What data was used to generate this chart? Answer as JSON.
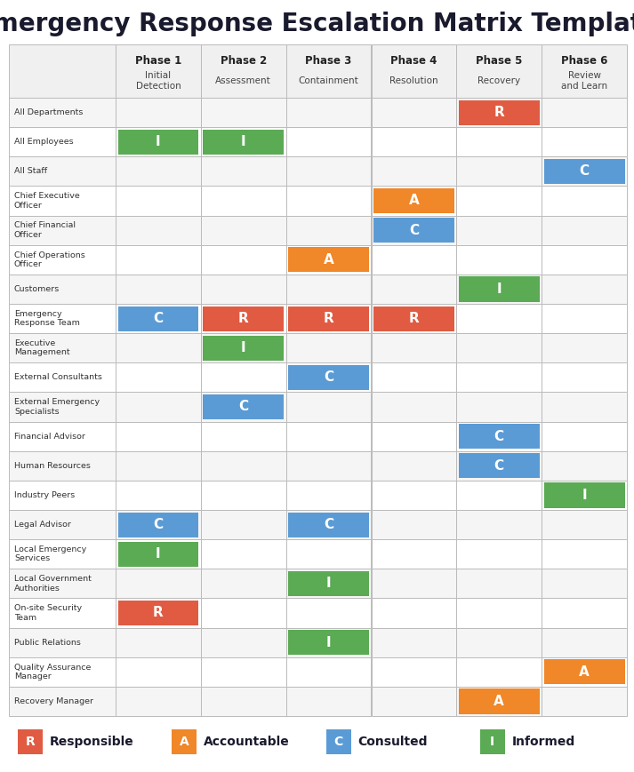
{
  "title": "Emergency Response Escalation Matrix Template",
  "phases": [
    {
      "label": "Phase 1",
      "sublabel": "Initial\nDetection"
    },
    {
      "label": "Phase 2",
      "sublabel": "Assessment"
    },
    {
      "label": "Phase 3",
      "sublabel": "Containment"
    },
    {
      "label": "Phase 4",
      "sublabel": "Resolution"
    },
    {
      "label": "Phase 5",
      "sublabel": "Recovery"
    },
    {
      "label": "Phase 6",
      "sublabel": "Review\nand Learn"
    }
  ],
  "rows": [
    "All Departments",
    "All Employees",
    "All Staff",
    "Chief Executive\nOfficer",
    "Chief Financial\nOfficer",
    "Chief Operations\nOfficer",
    "Customers",
    "Emergency\nResponse Team",
    "Executive\nManagement",
    "External Consultants",
    "External Emergency\nSpecialists",
    "Financial Advisor",
    "Human Resources",
    "Industry Peers",
    "Legal Advisor",
    "Local Emergency\nServices",
    "Local Government\nAuthorities",
    "On-site Security\nTeam",
    "Public Relations",
    "Quality Assurance\nManager",
    "Recovery Manager"
  ],
  "cells": [
    {
      "row": 0,
      "col": 4,
      "type": "R"
    },
    {
      "row": 1,
      "col": 0,
      "type": "I"
    },
    {
      "row": 1,
      "col": 1,
      "type": "I"
    },
    {
      "row": 2,
      "col": 5,
      "type": "C"
    },
    {
      "row": 3,
      "col": 3,
      "type": "A"
    },
    {
      "row": 4,
      "col": 3,
      "type": "C"
    },
    {
      "row": 5,
      "col": 2,
      "type": "A"
    },
    {
      "row": 6,
      "col": 4,
      "type": "I"
    },
    {
      "row": 7,
      "col": 0,
      "type": "C"
    },
    {
      "row": 7,
      "col": 1,
      "type": "R"
    },
    {
      "row": 7,
      "col": 2,
      "type": "R"
    },
    {
      "row": 7,
      "col": 3,
      "type": "R"
    },
    {
      "row": 8,
      "col": 1,
      "type": "I"
    },
    {
      "row": 9,
      "col": 2,
      "type": "C"
    },
    {
      "row": 10,
      "col": 1,
      "type": "C"
    },
    {
      "row": 11,
      "col": 4,
      "type": "C"
    },
    {
      "row": 12,
      "col": 4,
      "type": "C"
    },
    {
      "row": 13,
      "col": 5,
      "type": "I"
    },
    {
      "row": 14,
      "col": 0,
      "type": "C"
    },
    {
      "row": 14,
      "col": 2,
      "type": "C"
    },
    {
      "row": 15,
      "col": 0,
      "type": "I"
    },
    {
      "row": 16,
      "col": 2,
      "type": "I"
    },
    {
      "row": 17,
      "col": 0,
      "type": "R"
    },
    {
      "row": 18,
      "col": 2,
      "type": "I"
    },
    {
      "row": 19,
      "col": 5,
      "type": "A"
    },
    {
      "row": 20,
      "col": 4,
      "type": "A"
    }
  ],
  "colors": {
    "R": "#E05B42",
    "A": "#F08728",
    "C": "#5B9BD5",
    "I": "#5BAA54"
  },
  "title_color": "#1a1a2e",
  "grid_color": "#BBBBBB",
  "header_bg": "#F0F0F0",
  "row_odd_bg": "#F5F5F5",
  "row_even_bg": "#FFFFFF",
  "legend_items": [
    {
      "letter": "R",
      "label": "Responsible",
      "color": "#E05B42"
    },
    {
      "letter": "A",
      "label": "Accountable",
      "color": "#F08728"
    },
    {
      "letter": "C",
      "label": "Consulted",
      "color": "#5B9BD5"
    },
    {
      "letter": "I",
      "label": "Informed",
      "color": "#5BAA54"
    }
  ]
}
